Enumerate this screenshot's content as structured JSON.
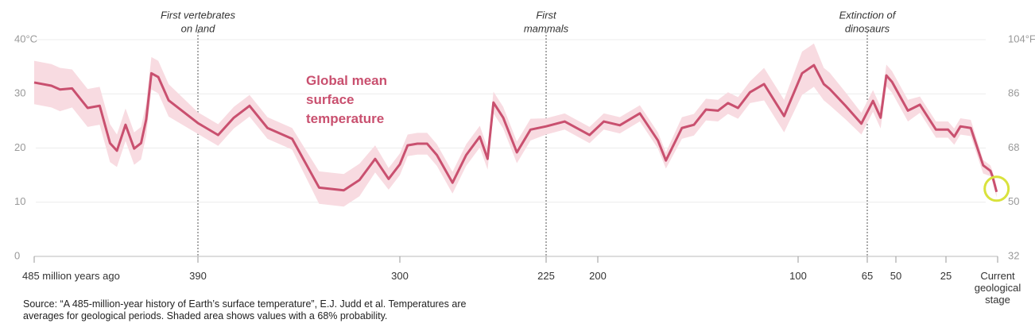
{
  "chart_data": {
    "type": "line",
    "x": [
      485,
      475,
      470,
      463,
      454,
      447,
      441,
      437,
      432,
      427,
      423,
      420,
      417,
      413,
      407,
      390,
      381,
      374,
      367,
      359,
      348,
      336,
      325,
      318,
      311,
      305,
      300,
      296,
      291,
      286,
      281,
      273,
      266,
      259,
      255,
      252,
      247,
      240,
      233,
      225,
      216,
      204,
      197,
      189,
      179,
      170,
      166,
      158,
      152,
      146,
      140,
      135,
      130,
      124,
      117,
      107,
      98,
      92,
      87,
      84,
      76,
      68,
      62,
      58,
      55,
      52,
      44,
      38,
      30,
      24,
      21,
      18,
      13,
      7,
      3.5,
      2.5,
      0.5
    ],
    "series": [
      {
        "name": "Global mean surface temperature",
        "color": "#c9506f",
        "values": [
          32.1,
          31.5,
          30.8,
          31.0,
          27.4,
          27.8,
          20.9,
          19.5,
          24.3,
          19.9,
          20.9,
          25.3,
          33.8,
          33.1,
          28.8,
          24.6,
          22.4,
          25.6,
          27.8,
          23.7,
          21.7,
          12.7,
          12.2,
          14.1,
          18.0,
          14.3,
          17.0,
          20.5,
          20.8,
          20.8,
          18.7,
          13.6,
          18.7,
          22.1,
          18.0,
          28.4,
          25.6,
          19.2,
          23.4,
          24.0,
          24.9,
          22.4,
          24.9,
          24.2,
          26.4,
          21.4,
          17.7,
          23.7,
          24.3,
          27.1,
          26.9,
          28.3,
          27.4,
          30.3,
          31.8,
          25.9,
          33.8,
          35.3,
          31.8,
          30.9,
          27.8,
          24.5,
          28.7,
          25.6,
          33.4,
          32.2,
          26.9,
          28.0,
          23.4,
          23.4,
          22.1,
          24.0,
          23.7,
          16.8,
          15.8,
          14.8,
          11.9
        ]
      }
    ],
    "band": {
      "color": "#f8dbe1",
      "lower": [
        28.1,
        27.5,
        26.8,
        27.5,
        23.9,
        24.3,
        17.4,
        16.5,
        21.3,
        16.9,
        17.9,
        22.3,
        30.8,
        30.1,
        25.8,
        22.6,
        20.4,
        23.6,
        25.8,
        21.7,
        19.7,
        9.7,
        9.2,
        11.1,
        15.5,
        12.3,
        15.0,
        18.5,
        18.8,
        18.8,
        16.7,
        11.6,
        16.7,
        20.1,
        16.0,
        26.4,
        23.6,
        17.2,
        21.4,
        22.5,
        23.4,
        20.9,
        23.4,
        22.7,
        24.9,
        19.9,
        16.2,
        21.7,
        22.3,
        25.1,
        24.9,
        26.3,
        25.4,
        28.3,
        28.8,
        22.9,
        29.8,
        31.3,
        28.8,
        27.9,
        25.3,
        22.5,
        26.7,
        23.6,
        31.4,
        30.2,
        24.9,
        26.5,
        21.9,
        21.9,
        20.6,
        22.5,
        22.2,
        15.3,
        14.8,
        13.8,
        10.9
      ],
      "upper": [
        36.1,
        35.5,
        34.8,
        34.5,
        30.9,
        31.3,
        24.4,
        22.5,
        27.3,
        22.9,
        23.9,
        28.3,
        36.8,
        36.1,
        31.8,
        26.6,
        24.4,
        27.6,
        29.8,
        25.7,
        23.7,
        15.7,
        15.2,
        17.1,
        20.5,
        16.3,
        19.0,
        22.5,
        22.8,
        22.8,
        20.7,
        15.6,
        20.7,
        24.1,
        20.0,
        30.4,
        27.6,
        21.2,
        25.4,
        25.5,
        26.4,
        23.9,
        26.4,
        25.7,
        27.9,
        22.9,
        19.2,
        25.7,
        26.3,
        29.1,
        28.9,
        30.3,
        29.4,
        32.3,
        34.8,
        28.9,
        37.8,
        39.3,
        34.8,
        33.9,
        30.3,
        26.5,
        30.7,
        27.6,
        35.4,
        34.2,
        28.9,
        29.5,
        24.9,
        24.9,
        23.6,
        25.5,
        25.2,
        17.8,
        16.8,
        15.8,
        12.9
      ]
    },
    "xlim": [
      485,
      0
    ],
    "xticks": [
      {
        "value": 485,
        "label": "485 million years ago"
      },
      390,
      300,
      225,
      200,
      100,
      65,
      50,
      25,
      {
        "value": 0,
        "label": "Current geological stage"
      }
    ],
    "ylim": [
      0,
      40
    ],
    "yticks": [
      0,
      10,
      20,
      30,
      {
        "value": 40,
        "label": "40°C"
      }
    ],
    "y2lim": [
      32,
      104
    ],
    "y2ticks": [
      32,
      50,
      68,
      86,
      {
        "value": 104,
        "label": "104°F"
      }
    ],
    "grid": true,
    "annotations": [
      {
        "x": 390,
        "lines": [
          "First vertebrates",
          "on land"
        ]
      },
      {
        "x": 225,
        "lines": [
          "First",
          "mammals"
        ]
      },
      {
        "x": 65,
        "lines": [
          "Extinction of",
          "dinosaurs"
        ]
      }
    ],
    "source": "Source: “A 485-million-year history of Earth’s surface temperature”, E.J. Judd et al. Temperatures are averages for geological periods. Shaded area shows values with a 68% probability."
  }
}
